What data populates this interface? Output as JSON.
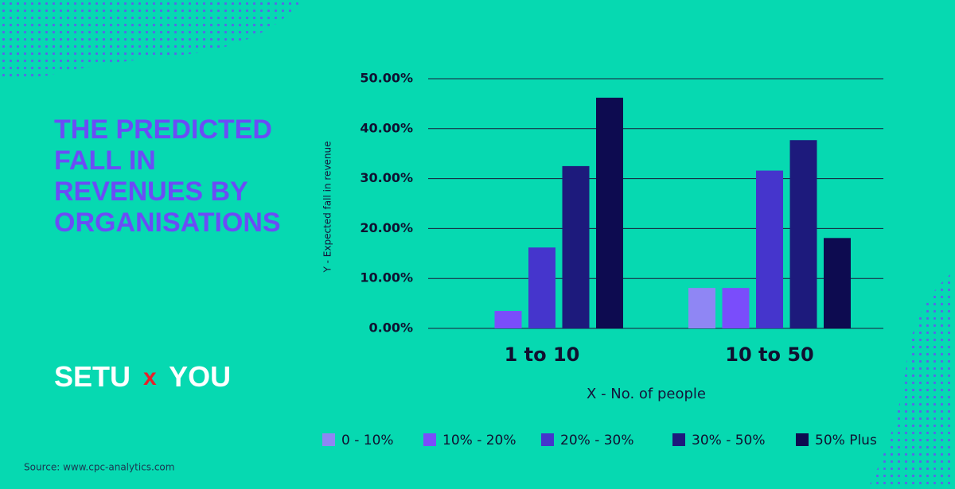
{
  "header": {
    "title_lines": [
      "THE PREDICTED",
      "FALL IN",
      "REVENUES BY",
      "ORGANISATIONS"
    ]
  },
  "logo": {
    "left": "SETU",
    "middle": "x",
    "right": "YOU"
  },
  "footer": {
    "source": "Source: www.cpc-analytics.com"
  },
  "chart_data": {
    "type": "bar",
    "categories": [
      "1 to 10",
      "10 to 50"
    ],
    "x_label": "X - No. of people",
    "y_label": "Y - Expected fall in revenue",
    "series": [
      {
        "name": "0 - 10%",
        "color": "#8f86f4",
        "values": [
          0,
          8.1
        ]
      },
      {
        "name": "10% - 20%",
        "color": "#7a4dfb",
        "values": [
          3.5,
          8.1
        ]
      },
      {
        "name": "20% - 30%",
        "color": "#4535cc",
        "values": [
          16.2,
          31.6
        ]
      },
      {
        "name": "30% - 50%",
        "color": "#1d1a7c",
        "values": [
          32.5,
          37.7
        ]
      },
      {
        "name": "50% Plus",
        "color": "#0d0b50",
        "values": [
          46.2,
          18.1
        ]
      }
    ],
    "ylim": [
      0,
      50
    ],
    "yticks": [
      {
        "value": 0,
        "label": "0.00%"
      },
      {
        "value": 10,
        "label": "10.00%"
      },
      {
        "value": 20,
        "label": "20.00%"
      },
      {
        "value": 30,
        "label": "30.00%"
      },
      {
        "value": 40,
        "label": "40.00%"
      },
      {
        "value": 50,
        "label": "50.00%"
      }
    ],
    "grid": true,
    "legend": "bottom"
  }
}
